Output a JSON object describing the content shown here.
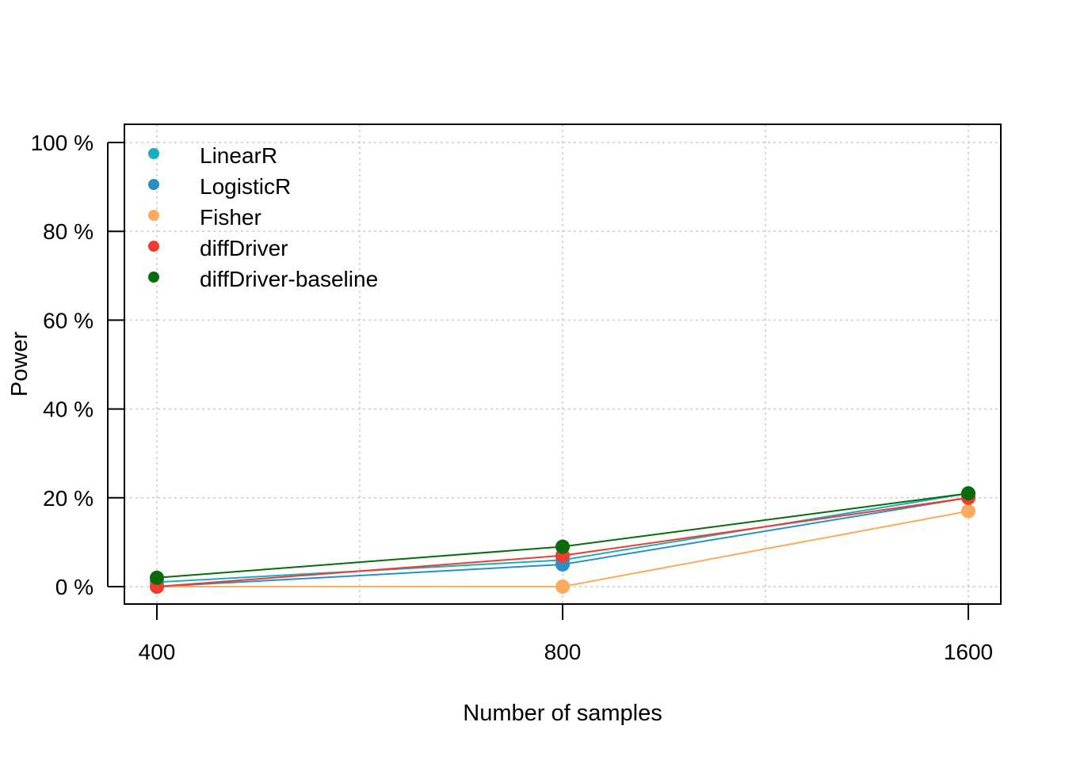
{
  "chart_data": {
    "type": "line",
    "title": "",
    "xlabel": "Number of samples",
    "ylabel": "Power",
    "x": [
      400,
      800,
      1600
    ],
    "x_tick_labels": [
      "400",
      "800",
      "1600"
    ],
    "y_tick_labels": [
      "0 %",
      "20 %",
      "40 %",
      "60 %",
      "80 %",
      "100 %"
    ],
    "y_ticks": [
      0,
      20,
      40,
      60,
      80,
      100
    ],
    "ylim": [
      -4,
      104
    ],
    "grid": true,
    "legend_position": "top-left",
    "series": [
      {
        "name": "LinearR",
        "color": "#17aebf",
        "values": [
          1,
          6,
          21
        ]
      },
      {
        "name": "LogisticR",
        "color": "#2a8fc4",
        "values": [
          0,
          5,
          20
        ]
      },
      {
        "name": "Fisher",
        "color": "#fbaa5e",
        "values": [
          0,
          0,
          17
        ]
      },
      {
        "name": "diffDriver",
        "color": "#f03b2e",
        "values": [
          0,
          7,
          20
        ]
      },
      {
        "name": "diffDriver-baseline",
        "color": "#0a6b0a",
        "values": [
          2,
          9,
          21
        ]
      }
    ]
  }
}
